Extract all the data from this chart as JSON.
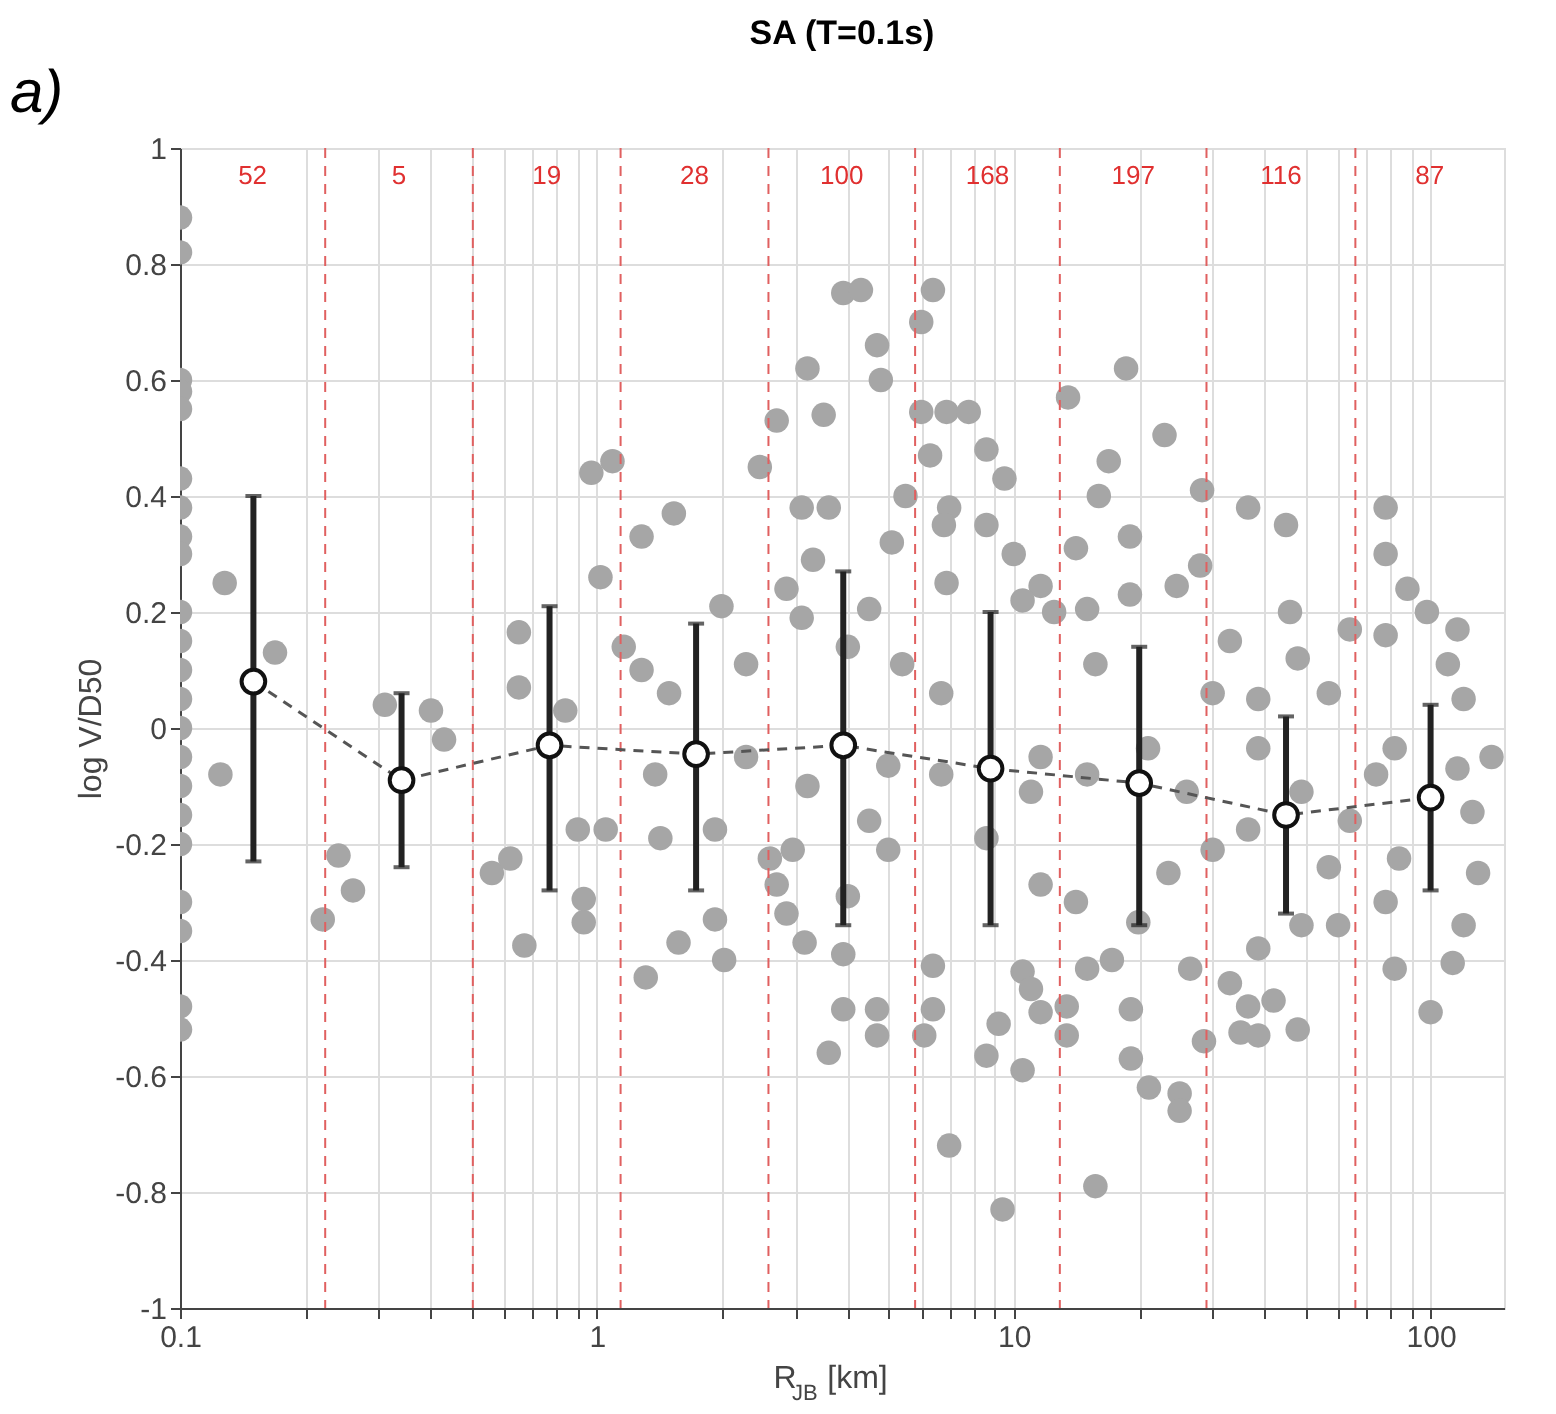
{
  "chart_data": {
    "type": "scatter",
    "title": "SA (T=0.1s)",
    "xlabel": "R$_{JB}$ [km]",
    "ylabel": "log V/D50",
    "log": "x",
    "grid": true,
    "xlim": [
      0.1,
      150
    ],
    "ylim": [
      -1,
      1
    ],
    "xticks": [
      0.1,
      {
        "value": 0.2,
        "label": null
      },
      {
        "value": 0.3,
        "label": null
      },
      {
        "value": 0.4,
        "label": null
      },
      {
        "value": 0.5,
        "label": null
      },
      {
        "value": 0.6,
        "label": null
      },
      {
        "value": 0.7,
        "label": null
      },
      {
        "value": 0.8,
        "label": null
      },
      {
        "value": 0.9,
        "label": null
      },
      1,
      {
        "value": 2,
        "label": null
      },
      {
        "value": 3,
        "label": null
      },
      {
        "value": 4,
        "label": null
      },
      {
        "value": 5,
        "label": null
      },
      {
        "value": 6,
        "label": null
      },
      {
        "value": 7,
        "label": null
      },
      {
        "value": 8,
        "label": null
      },
      {
        "value": 9,
        "label": null
      },
      10,
      {
        "value": 20,
        "label": null
      },
      {
        "value": 30,
        "label": null
      },
      {
        "value": 40,
        "label": null
      },
      {
        "value": 50,
        "label": null
      },
      {
        "value": 60,
        "label": null
      },
      {
        "value": 70,
        "label": null
      },
      {
        "value": 80,
        "label": null
      },
      {
        "value": 90,
        "label": null
      },
      100
    ],
    "yticks": [
      -1,
      -0.8,
      -0.6,
      -0.4,
      -0.2,
      0,
      0.2,
      0.4,
      0.6,
      0.8,
      1
    ],
    "series": [
      {
        "marker": "circle",
        "color": "#a6a6a6",
        "x": [
          0.1,
          0.1,
          0.1,
          0.1,
          0.1,
          0.1,
          0.1,
          0.1,
          0.1,
          0.1,
          0.1,
          0.1,
          0.1,
          0.1,
          0.1,
          0.1,
          0.1,
          0.1,
          0.1,
          0.1,
          0.1,
          0.1,
          0.128,
          0.169,
          0.97,
          1.09,
          1.02,
          1.16,
          1.28,
          1.53,
          2.46,
          1.99,
          2.28,
          2.7,
          3.2,
          3.5,
          3.1,
          3.6,
          3.3,
          3.9,
          4.3,
          4.7,
          4.8,
          6.0,
          6.4,
          6.0,
          6.9,
          7.8,
          6.3,
          5.5,
          7.0,
          6.8,
          8.6,
          9.5,
          8.6,
          10.0,
          6.9,
          13.5,
          18.6,
          16.9,
          16,
          19,
          14.1,
          23.0,
          28.3,
          36.5,
          45,
          46,
          33,
          28,
          24.6,
          78,
          78,
          88,
          98,
          116,
          110,
          78,
          64,
          57,
          48,
          11.6,
          12.5,
          10.5,
          15,
          19,
          4.5,
          5.1,
          2.85,
          3.1,
          4.0,
          0.65,
          0.65,
          0.84,
          0.31,
          0.4,
          0.43,
          1.28,
          1.49,
          5.4,
          6.7,
          15.7,
          30,
          38.6,
          2.28,
          120,
          0.125,
          0.22,
          0.24,
          0.26,
          0.56,
          0.62,
          0.67,
          0.9,
          1.05,
          0.93,
          0.93,
          1.31,
          1.38,
          1.42,
          1.57,
          1.92,
          1.92,
          2.02,
          2.6,
          2.7,
          2.85,
          3.15,
          3.9,
          3.6,
          3.9,
          4.7,
          4.7,
          6.1,
          6.4,
          6.4,
          7.0,
          8.6,
          9.2,
          9.4,
          10.5,
          10.5,
          11.0,
          11.6,
          13.4,
          13.4,
          15.7,
          15,
          17.2,
          19.1,
          21.1,
          19.1,
          25,
          25,
          28.6,
          26.5,
          35,
          38.6,
          42,
          48,
          36.5,
          33,
          38.6,
          49,
          60,
          82,
          100,
          113,
          130,
          120,
          78,
          57,
          5.0,
          4.5,
          4.0,
          2.95,
          8.6,
          11.6,
          14.1,
          19.9,
          23.5,
          30,
          36.5,
          64,
          84,
          126,
          116,
          74,
          49,
          26,
          15,
          11,
          6.7,
          5.0,
          3.2,
          11.6,
          21,
          38.6,
          82,
          140
        ],
        "values": [
          0.88,
          0.82,
          0.6,
          0.58,
          0.55,
          0.43,
          0.38,
          0.33,
          0.3,
          0.2,
          0.15,
          0.1,
          0.05,
          0,
          -0.05,
          -0.1,
          -0.15,
          -0.2,
          -0.3,
          -0.35,
          -0.48,
          -0.52,
          0.25,
          0.13,
          0.44,
          0.46,
          0.26,
          0.14,
          0.33,
          0.37,
          0.45,
          0.21,
          0.11,
          0.53,
          0.62,
          0.54,
          0.38,
          0.38,
          0.29,
          0.75,
          0.755,
          0.66,
          0.6,
          0.7,
          0.755,
          0.545,
          0.545,
          0.545,
          0.47,
          0.4,
          0.38,
          0.35,
          0.48,
          0.43,
          0.35,
          0.3,
          0.25,
          0.57,
          0.62,
          0.46,
          0.4,
          0.33,
          0.31,
          0.505,
          0.41,
          0.38,
          0.35,
          0.2,
          0.15,
          0.28,
          0.245,
          0.38,
          0.3,
          0.24,
          0.2,
          0.17,
          0.11,
          0.16,
          0.17,
          0.06,
          0.12,
          0.245,
          0.2,
          0.22,
          0.205,
          0.23,
          0.205,
          0.32,
          0.24,
          0.19,
          0.14,
          0.165,
          0.07,
          0.03,
          0.04,
          0.03,
          -0.02,
          0.1,
          0.06,
          0.11,
          0.06,
          0.11,
          0.06,
          0.05,
          -0.05,
          0.05,
          -0.08,
          -0.33,
          -0.22,
          -0.28,
          -0.25,
          -0.225,
          -0.375,
          -0.175,
          -0.175,
          -0.295,
          -0.335,
          -0.43,
          -0.08,
          -0.19,
          -0.37,
          -0.175,
          -0.33,
          -0.4,
          -0.225,
          -0.27,
          -0.32,
          -0.37,
          -0.39,
          -0.56,
          -0.485,
          -0.53,
          -0.485,
          -0.53,
          -0.41,
          -0.485,
          -0.72,
          -0.565,
          -0.51,
          -0.83,
          -0.59,
          -0.42,
          -0.45,
          -0.49,
          -0.48,
          -0.53,
          -0.79,
          -0.415,
          -0.4,
          -0.57,
          -0.62,
          -0.485,
          -0.63,
          -0.66,
          -0.54,
          -0.415,
          -0.525,
          -0.53,
          -0.47,
          -0.52,
          -0.48,
          -0.44,
          -0.38,
          -0.34,
          -0.34,
          -0.415,
          -0.49,
          -0.405,
          -0.25,
          -0.34,
          -0.3,
          -0.24,
          -0.21,
          -0.16,
          -0.29,
          -0.21,
          -0.19,
          -0.27,
          -0.3,
          -0.335,
          -0.25,
          -0.21,
          -0.175,
          -0.16,
          -0.225,
          -0.145,
          -0.07,
          -0.08,
          -0.11,
          -0.11,
          -0.08,
          -0.11,
          -0.08,
          -0.065,
          -0.1,
          -0.05,
          -0.035,
          -0.035,
          -0.035,
          -0.05
        ]
      },
      {
        "type": "line",
        "marker": "circle",
        "line_style": "dashed",
        "color": "#555555",
        "x": [
          0.15,
          0.34,
          0.77,
          1.73,
          3.9,
          8.8,
          20,
          45,
          100
        ],
        "values": [
          0.08,
          -0.09,
          -0.03,
          -0.045,
          -0.03,
          -0.07,
          -0.095,
          -0.15,
          -0.12
        ],
        "errors": [
          [
            -0.23,
            0.4
          ],
          [
            -0.24,
            0.06
          ],
          [
            -0.28,
            0.21
          ],
          [
            -0.28,
            0.18
          ],
          [
            -0.34,
            0.27
          ],
          [
            -0.34,
            0.2
          ],
          [
            -0.34,
            0.14
          ],
          [
            -0.32,
            0.02
          ],
          [
            -0.28,
            0.04
          ]
        ]
      }
    ],
    "ref_lines": [
      {
        "axis": "x",
        "value": 0.223,
        "color": "#e06060",
        "line_style": "dashed"
      },
      {
        "axis": "x",
        "value": 0.504,
        "color": "#e06060",
        "line_style": "dashed"
      },
      {
        "axis": "x",
        "value": 1.14,
        "color": "#e06060",
        "line_style": "dashed"
      },
      {
        "axis": "x",
        "value": 2.58,
        "color": "#e06060",
        "line_style": "dashed"
      },
      {
        "axis": "x",
        "value": 5.8,
        "color": "#e06060",
        "line_style": "dashed"
      },
      {
        "axis": "x",
        "value": 12.9,
        "color": "#e06060",
        "line_style": "dashed"
      },
      {
        "axis": "x",
        "value": 29,
        "color": "#e06060",
        "line_style": "dashed"
      },
      {
        "axis": "x",
        "value": 66,
        "color": "#e06060",
        "line_style": "dashed"
      }
    ],
    "annotations": [
      "a)",
      "52",
      "5",
      "19",
      "28",
      "100",
      "168",
      "197",
      "116",
      "87"
    ]
  }
}
